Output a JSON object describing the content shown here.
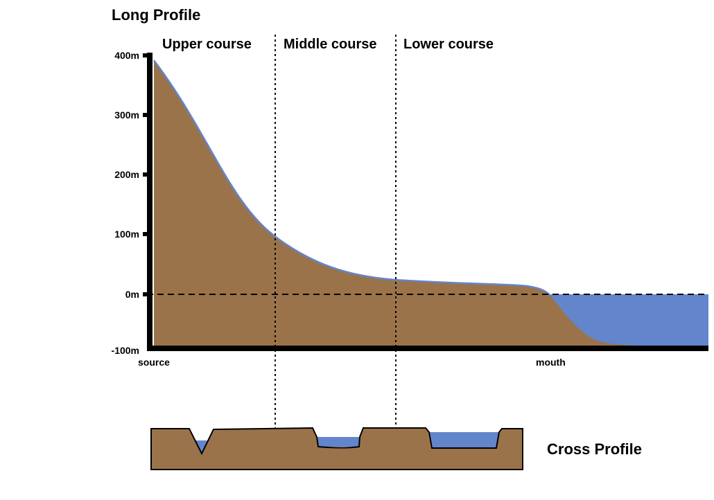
{
  "diagram": {
    "long_profile_title": "Long Profile",
    "cross_profile_title": "Cross Profile",
    "courses": {
      "upper": "Upper course",
      "middle": "Middle course",
      "lower": "Lower course"
    },
    "y_ticks": [
      "400m",
      "300m",
      "200m",
      "100m",
      "0m",
      "-100m"
    ],
    "x_labels": {
      "source": "source",
      "mouth": "mouth"
    },
    "colors": {
      "land": "#9b734a",
      "water": "#6385cc",
      "axis": "#000000",
      "background": "#ffffff"
    }
  }
}
